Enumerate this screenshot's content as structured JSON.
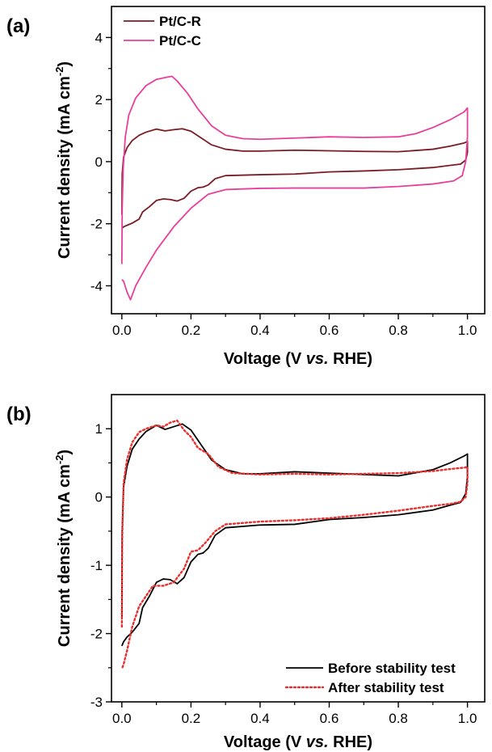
{
  "chart_data": [
    {
      "type": "line",
      "panel_label": "(a)",
      "xlabel": [
        "Voltage (V ",
        "vs.",
        " RHE)"
      ],
      "ylabel": [
        "Current density (mA cm",
        "-2",
        ")"
      ],
      "xlim": [
        -0.03,
        1.05
      ],
      "ylim": [
        -4.9,
        5.0
      ],
      "xticks": [
        0.0,
        0.2,
        0.4,
        0.6,
        0.8,
        1.0
      ],
      "xtick_labels": [
        "0.0",
        "0.2",
        "0.4",
        "0.6",
        "0.8",
        "1.0"
      ],
      "yticks": [
        -4,
        -2,
        0,
        2,
        4
      ],
      "ytick_labels": [
        "-4",
        "-2",
        "0",
        "2",
        "4"
      ],
      "legend_position": "top-left",
      "series": [
        {
          "name": "Pt/C-R",
          "color": "#7b1c22",
          "style": "solid",
          "points": [
            [
              0.0,
              -1.7
            ],
            [
              0.001,
              -0.4
            ],
            [
              0.005,
              0.15
            ],
            [
              0.015,
              0.45
            ],
            [
              0.03,
              0.68
            ],
            [
              0.05,
              0.85
            ],
            [
              0.07,
              0.95
            ],
            [
              0.1,
              1.05
            ],
            [
              0.125,
              0.99
            ],
            [
              0.15,
              1.03
            ],
            [
              0.175,
              1.06
            ],
            [
              0.2,
              0.98
            ],
            [
              0.23,
              0.76
            ],
            [
              0.26,
              0.54
            ],
            [
              0.3,
              0.4
            ],
            [
              0.35,
              0.34
            ],
            [
              0.4,
              0.34
            ],
            [
              0.5,
              0.37
            ],
            [
              0.6,
              0.35
            ],
            [
              0.7,
              0.33
            ],
            [
              0.8,
              0.32
            ],
            [
              0.9,
              0.4
            ],
            [
              0.95,
              0.5
            ],
            [
              0.99,
              0.6
            ],
            [
              1.0,
              0.65
            ],
            [
              1.0,
              0.3
            ],
            [
              0.995,
              0.05
            ],
            [
              0.98,
              -0.08
            ],
            [
              0.95,
              -0.12
            ],
            [
              0.9,
              -0.19
            ],
            [
              0.8,
              -0.26
            ],
            [
              0.7,
              -0.3
            ],
            [
              0.6,
              -0.33
            ],
            [
              0.5,
              -0.4
            ],
            [
              0.4,
              -0.42
            ],
            [
              0.3,
              -0.45
            ],
            [
              0.27,
              -0.55
            ],
            [
              0.25,
              -0.75
            ],
            [
              0.235,
              -0.82
            ],
            [
              0.22,
              -0.84
            ],
            [
              0.2,
              -0.95
            ],
            [
              0.18,
              -1.18
            ],
            [
              0.16,
              -1.27
            ],
            [
              0.14,
              -1.22
            ],
            [
              0.12,
              -1.2
            ],
            [
              0.1,
              -1.25
            ],
            [
              0.08,
              -1.45
            ],
            [
              0.06,
              -1.62
            ],
            [
              0.05,
              -1.85
            ],
            [
              0.03,
              -1.98
            ],
            [
              0.015,
              -2.05
            ],
            [
              0.005,
              -2.1
            ],
            [
              0.0,
              -2.15
            ]
          ]
        },
        {
          "name": "Pt/C-C",
          "color": "#e8409a",
          "style": "solid",
          "points": [
            [
              0.0,
              -3.3
            ],
            [
              0.001,
              -1.5
            ],
            [
              0.004,
              -0.2
            ],
            [
              0.01,
              0.8
            ],
            [
              0.02,
              1.5
            ],
            [
              0.04,
              2.05
            ],
            [
              0.07,
              2.45
            ],
            [
              0.1,
              2.65
            ],
            [
              0.13,
              2.72
            ],
            [
              0.145,
              2.75
            ],
            [
              0.16,
              2.6
            ],
            [
              0.19,
              2.2
            ],
            [
              0.22,
              1.7
            ],
            [
              0.26,
              1.15
            ],
            [
              0.3,
              0.85
            ],
            [
              0.35,
              0.74
            ],
            [
              0.4,
              0.72
            ],
            [
              0.5,
              0.76
            ],
            [
              0.6,
              0.8
            ],
            [
              0.7,
              0.78
            ],
            [
              0.8,
              0.8
            ],
            [
              0.85,
              0.9
            ],
            [
              0.9,
              1.1
            ],
            [
              0.95,
              1.35
            ],
            [
              0.99,
              1.6
            ],
            [
              1.0,
              1.73
            ],
            [
              1.0,
              0.8
            ],
            [
              0.995,
              0.0
            ],
            [
              0.985,
              -0.45
            ],
            [
              0.96,
              -0.62
            ],
            [
              0.9,
              -0.72
            ],
            [
              0.8,
              -0.8
            ],
            [
              0.7,
              -0.85
            ],
            [
              0.6,
              -0.85
            ],
            [
              0.5,
              -0.85
            ],
            [
              0.4,
              -0.86
            ],
            [
              0.3,
              -0.9
            ],
            [
              0.25,
              -1.05
            ],
            [
              0.2,
              -1.5
            ],
            [
              0.15,
              -2.1
            ],
            [
              0.1,
              -2.85
            ],
            [
              0.07,
              -3.4
            ],
            [
              0.04,
              -4.0
            ],
            [
              0.025,
              -4.45
            ],
            [
              0.015,
              -4.2
            ],
            [
              0.005,
              -3.85
            ],
            [
              0.0,
              -3.8
            ]
          ]
        }
      ]
    },
    {
      "type": "line",
      "panel_label": "(b)",
      "xlabel": [
        "Voltage (V ",
        "vs.",
        " RHE)"
      ],
      "ylabel": [
        "Current density (mA cm",
        "-2",
        ")"
      ],
      "xlim": [
        -0.03,
        1.05
      ],
      "ylim": [
        -3.0,
        1.5
      ],
      "xticks": [
        0.0,
        0.2,
        0.4,
        0.6,
        0.8,
        1.0
      ],
      "xtick_labels": [
        "0.0",
        "0.2",
        "0.4",
        "0.6",
        "0.8",
        "1.0"
      ],
      "yticks": [
        -3,
        -2,
        -1,
        0,
        1
      ],
      "ytick_labels": [
        "-3",
        "-2",
        "-1",
        "0",
        "1"
      ],
      "legend_position": "bottom-right",
      "series": [
        {
          "name": "Before stability test",
          "color": "#000000",
          "style": "solid",
          "points": [
            [
              0.0,
              -1.75
            ],
            [
              0.001,
              -0.5
            ],
            [
              0.005,
              0.15
            ],
            [
              0.015,
              0.45
            ],
            [
              0.03,
              0.7
            ],
            [
              0.05,
              0.85
            ],
            [
              0.07,
              0.96
            ],
            [
              0.1,
              1.05
            ],
            [
              0.125,
              0.99
            ],
            [
              0.15,
              1.03
            ],
            [
              0.175,
              1.07
            ],
            [
              0.2,
              0.98
            ],
            [
              0.23,
              0.76
            ],
            [
              0.26,
              0.54
            ],
            [
              0.3,
              0.4
            ],
            [
              0.35,
              0.34
            ],
            [
              0.4,
              0.34
            ],
            [
              0.5,
              0.37
            ],
            [
              0.6,
              0.35
            ],
            [
              0.7,
              0.33
            ],
            [
              0.8,
              0.31
            ],
            [
              0.9,
              0.4
            ],
            [
              0.95,
              0.5
            ],
            [
              0.99,
              0.6
            ],
            [
              1.0,
              0.63
            ],
            [
              1.0,
              0.3
            ],
            [
              0.995,
              0.05
            ],
            [
              0.98,
              -0.08
            ],
            [
              0.95,
              -0.12
            ],
            [
              0.9,
              -0.19
            ],
            [
              0.8,
              -0.26
            ],
            [
              0.7,
              -0.3
            ],
            [
              0.6,
              -0.33
            ],
            [
              0.5,
              -0.4
            ],
            [
              0.4,
              -0.41
            ],
            [
              0.3,
              -0.45
            ],
            [
              0.27,
              -0.56
            ],
            [
              0.25,
              -0.75
            ],
            [
              0.235,
              -0.82
            ],
            [
              0.22,
              -0.84
            ],
            [
              0.2,
              -0.95
            ],
            [
              0.18,
              -1.18
            ],
            [
              0.16,
              -1.27
            ],
            [
              0.14,
              -1.21
            ],
            [
              0.12,
              -1.2
            ],
            [
              0.1,
              -1.25
            ],
            [
              0.08,
              -1.45
            ],
            [
              0.06,
              -1.62
            ],
            [
              0.05,
              -1.85
            ],
            [
              0.03,
              -1.98
            ],
            [
              0.015,
              -2.05
            ],
            [
              0.005,
              -2.12
            ],
            [
              0.0,
              -2.18
            ]
          ]
        },
        {
          "name": "After stability test",
          "color": "#e8302e",
          "style": "dotted",
          "points": [
            [
              0.0,
              -1.9
            ],
            [
              0.001,
              -0.6
            ],
            [
              0.005,
              0.2
            ],
            [
              0.015,
              0.55
            ],
            [
              0.03,
              0.8
            ],
            [
              0.05,
              0.95
            ],
            [
              0.07,
              1.0
            ],
            [
              0.1,
              1.05
            ],
            [
              0.12,
              1.03
            ],
            [
              0.14,
              1.09
            ],
            [
              0.16,
              1.12
            ],
            [
              0.18,
              0.98
            ],
            [
              0.2,
              0.88
            ],
            [
              0.22,
              0.72
            ],
            [
              0.25,
              0.63
            ],
            [
              0.28,
              0.44
            ],
            [
              0.32,
              0.35
            ],
            [
              0.4,
              0.33
            ],
            [
              0.5,
              0.34
            ],
            [
              0.6,
              0.33
            ],
            [
              0.7,
              0.34
            ],
            [
              0.8,
              0.35
            ],
            [
              0.9,
              0.38
            ],
            [
              0.95,
              0.41
            ],
            [
              0.99,
              0.43
            ],
            [
              1.0,
              0.44
            ],
            [
              1.0,
              0.2
            ],
            [
              0.995,
              0.0
            ],
            [
              0.98,
              -0.07
            ],
            [
              0.95,
              -0.1
            ],
            [
              0.9,
              -0.13
            ],
            [
              0.8,
              -0.2
            ],
            [
              0.7,
              -0.26
            ],
            [
              0.6,
              -0.31
            ],
            [
              0.5,
              -0.34
            ],
            [
              0.4,
              -0.36
            ],
            [
              0.3,
              -0.4
            ],
            [
              0.27,
              -0.5
            ],
            [
              0.24,
              -0.68
            ],
            [
              0.22,
              -0.78
            ],
            [
              0.2,
              -0.8
            ],
            [
              0.18,
              -1.05
            ],
            [
              0.15,
              -1.25
            ],
            [
              0.12,
              -1.3
            ],
            [
              0.09,
              -1.3
            ],
            [
              0.07,
              -1.45
            ],
            [
              0.05,
              -1.6
            ],
            [
              0.03,
              -1.9
            ],
            [
              0.015,
              -2.25
            ],
            [
              0.005,
              -2.45
            ],
            [
              0.0,
              -2.52
            ]
          ]
        }
      ]
    }
  ]
}
